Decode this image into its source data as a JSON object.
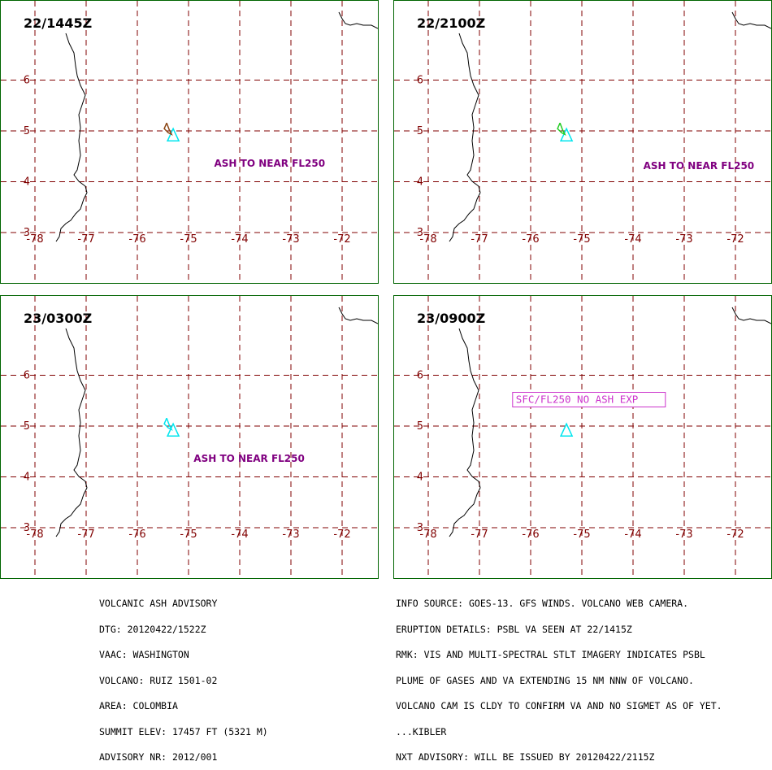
{
  "colors": {
    "grid": "#800000",
    "coast": "#000000",
    "frame": "#006400",
    "ash_label": "#800080",
    "no_ash_box": "#cc33cc",
    "volcano": "#00e5ee",
    "plume_obs": "#8b4513",
    "plume_green": "#22cc22"
  },
  "axes": {
    "lon_labels": [
      "-78",
      "-77",
      "-76",
      "-75",
      "-74",
      "-73",
      "-72"
    ],
    "lat_labels": [
      "3",
      "4",
      "5",
      "6"
    ]
  },
  "volcano": {
    "name_icon": "volcano-triangle-icon",
    "lon": -75.3,
    "lat": 4.9
  },
  "panels": [
    {
      "time": "22/1445Z",
      "label": "ASH TO NEAR FL250",
      "label_lon": -74.5,
      "label_lat": 4.3,
      "plume": "obs"
    },
    {
      "time": "22/2100Z",
      "label": "ASH TO NEAR FL250",
      "label_lon": -73.8,
      "label_lat": 4.25,
      "plume": "green"
    },
    {
      "time": "23/0300Z",
      "label": "ASH TO NEAR FL250",
      "label_lon": -74.9,
      "label_lat": 4.3,
      "plume": "cyan"
    },
    {
      "time": "23/0900Z",
      "boxlabel": "SFC/FL250 NO ASH EXP",
      "label_lon": -75.4,
      "label_lat": 5.6,
      "plume": "none"
    }
  ],
  "advisory_left": [
    "VOLCANIC ASH ADVISORY",
    "DTG: 20120422/1522Z",
    "VAAC: WASHINGTON",
    "VOLCANO: RUIZ 1501-02",
    "AREA: COLOMBIA",
    "SUMMIT ELEV: 17457 FT (5321 M)",
    "ADVISORY NR: 2012/001"
  ],
  "advisory_right": [
    "INFO SOURCE: GOES-13. GFS WINDS. VOLCANO WEB CAMERA.",
    "ERUPTION DETAILS: PSBL VA SEEN AT 22/1415Z",
    "RMK: VIS AND MULTI-SPECTRAL STLT IMAGERY INDICATES PSBL",
    "PLUME OF GASES AND VA EXTENDING 15 NM NNW OF VOLCANO.",
    "VOLCANO CAM IS CLDY TO CONFIRM VA AND NO SIGMET AS OF YET.",
    "...KIBLER",
    "NXT ADVISORY: WILL BE ISSUED BY 20120422/2115Z"
  ]
}
